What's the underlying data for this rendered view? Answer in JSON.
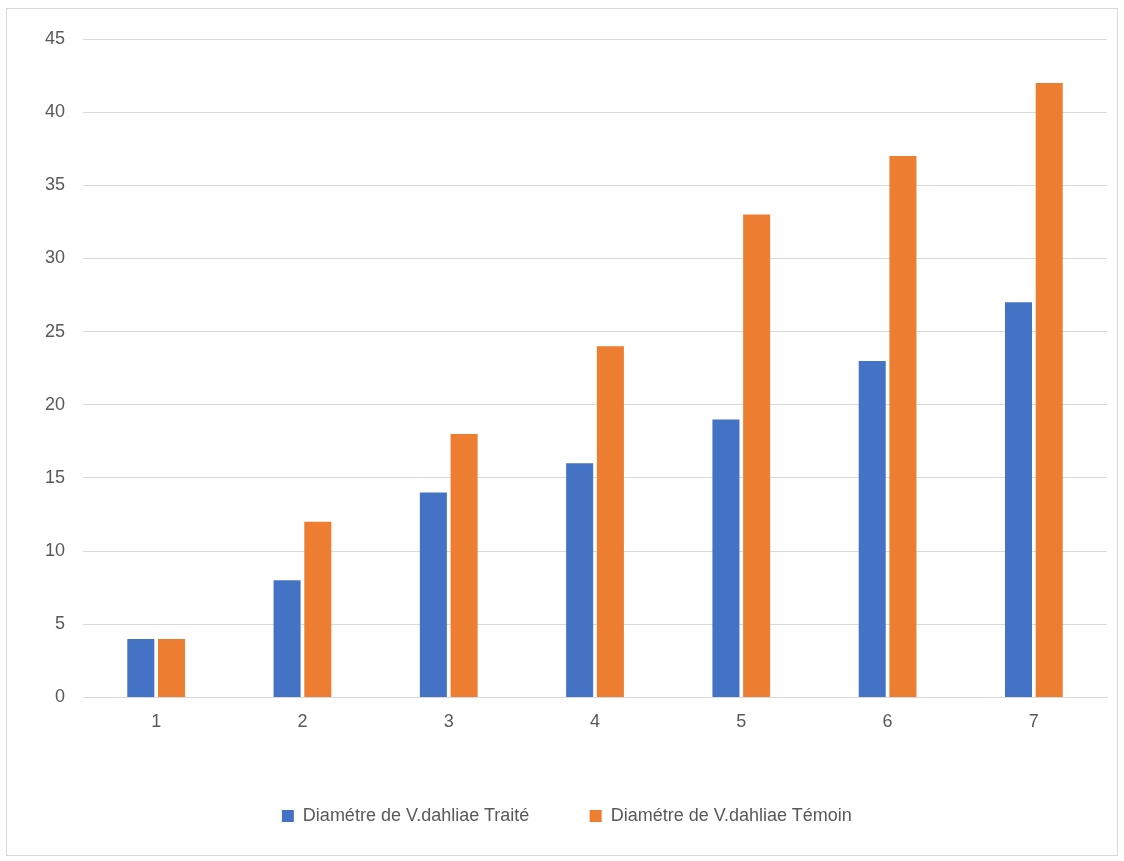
{
  "chart_data": {
    "type": "bar",
    "categories": [
      "1",
      "2",
      "3",
      "4",
      "5",
      "6",
      "7"
    ],
    "series": [
      {
        "name": "Diamétre de V.dahliae Traité",
        "color": "#4472c4",
        "values": [
          4,
          8,
          14,
          16,
          19,
          23,
          27
        ]
      },
      {
        "name": "Diamétre de V.dahliae Témoin",
        "color": "#ed7d31",
        "values": [
          4,
          12,
          18,
          24,
          33,
          37,
          42
        ]
      }
    ],
    "ylim": [
      0,
      45
    ],
    "yticks": [
      0,
      5,
      10,
      15,
      20,
      25,
      30,
      35,
      40,
      45
    ],
    "grid": "y",
    "legend": "bottom"
  }
}
